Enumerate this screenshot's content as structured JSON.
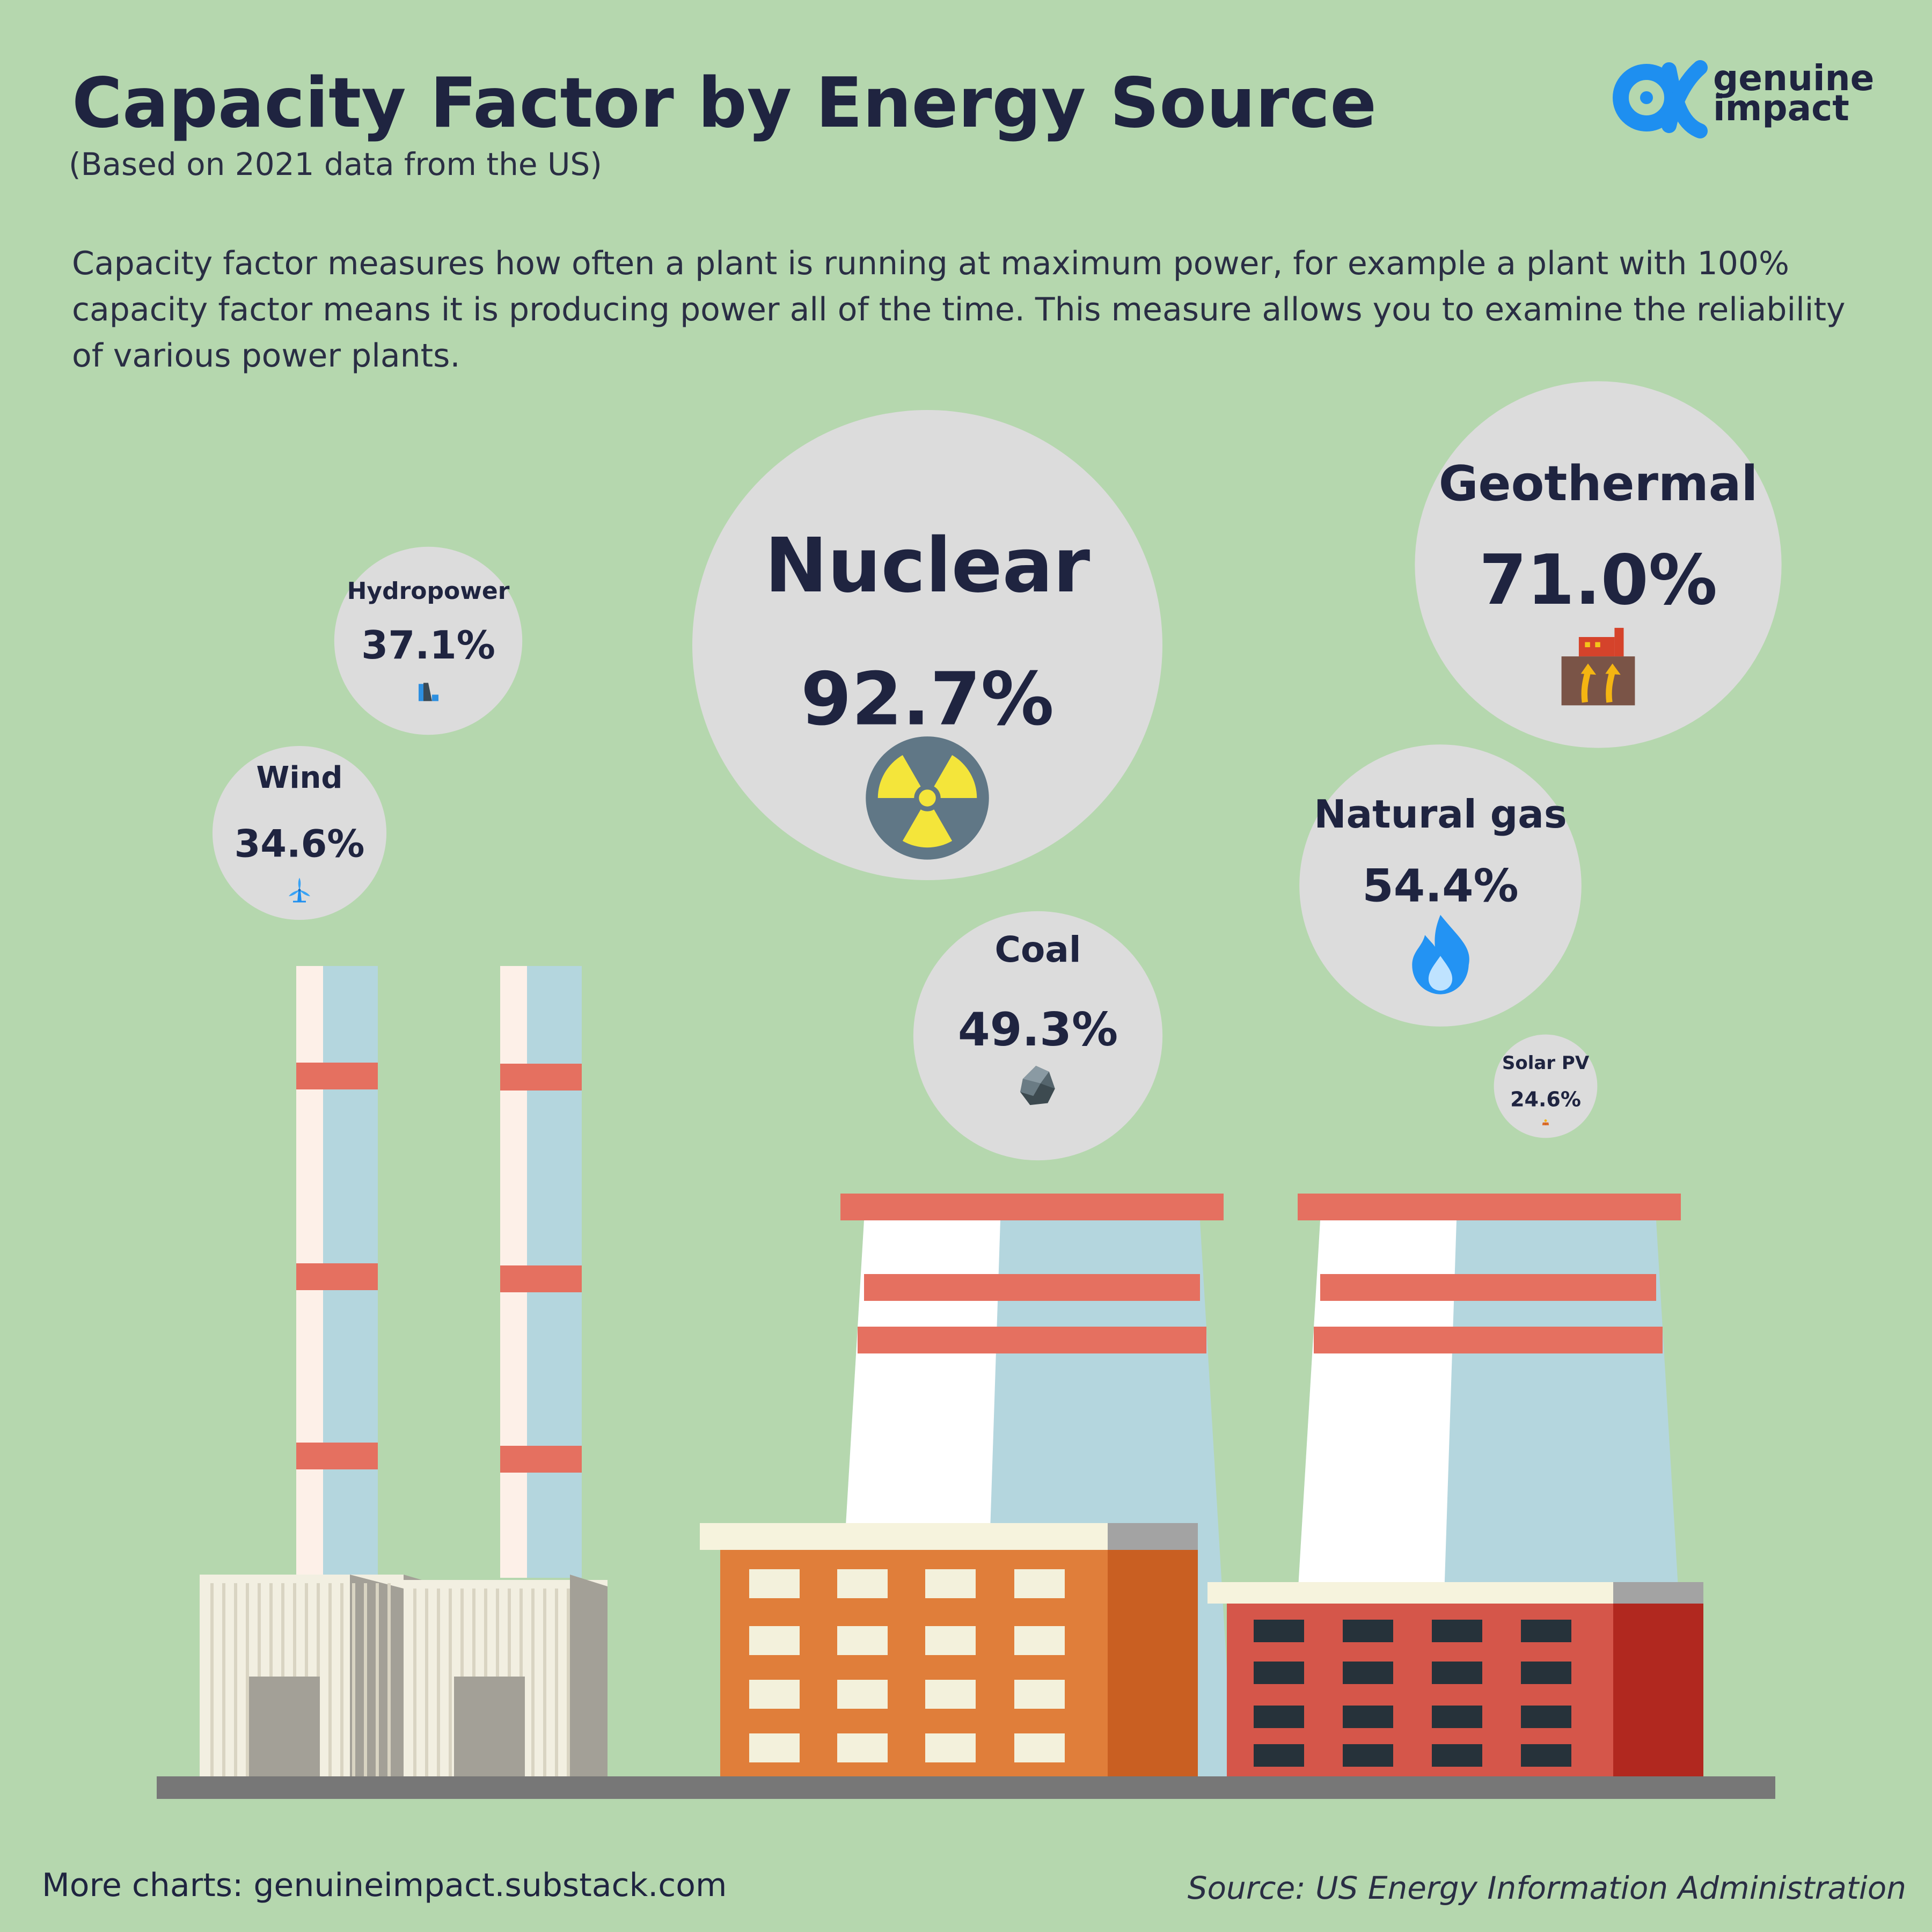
{
  "header": {
    "title": "Capacity Factor by Energy Source",
    "subtitle": "(Based on 2021 data from the US)",
    "description": "Capacity factor measures how often a plant is running at maximum power, for example a plant with 100% capacity factor means it is producing power all of the time.  This measure allows you to examine the reliability of various power plants."
  },
  "logo": {
    "line1": "genuine",
    "line2": "impact",
    "color": "#1e8ff0"
  },
  "footer": {
    "more_charts": "More charts: genuineimpact.substack.com",
    "source": "Source: US Energy Information Administration"
  },
  "colors": {
    "background": "#b5d7ae",
    "bubble": "#dcdcdc",
    "text": "#1f2440",
    "stripe_red": "#e57060",
    "tower_blue": "#b4d6de"
  },
  "chart_data": {
    "type": "bubble",
    "unit": "%",
    "series": [
      {
        "category": "Nuclear",
        "value": 92.7,
        "label": "92.7%",
        "icon": "radiation-icon"
      },
      {
        "category": "Geothermal",
        "value": 71.0,
        "label": "71.0%",
        "icon": "geothermal-icon"
      },
      {
        "category": "Natural gas",
        "value": 54.4,
        "label": "54.4%",
        "icon": "flame-icon"
      },
      {
        "category": "Coal",
        "value": 49.3,
        "label": "49.3%",
        "icon": "coal-icon"
      },
      {
        "category": "Hydropower",
        "value": 37.1,
        "label": "37.1%",
        "icon": "dam-icon"
      },
      {
        "category": "Wind",
        "value": 34.6,
        "label": "34.6%",
        "icon": "wind-turbine-icon"
      },
      {
        "category": "Solar PV",
        "value": 24.6,
        "label": "24.6%",
        "icon": "solar-panel-icon"
      }
    ]
  }
}
